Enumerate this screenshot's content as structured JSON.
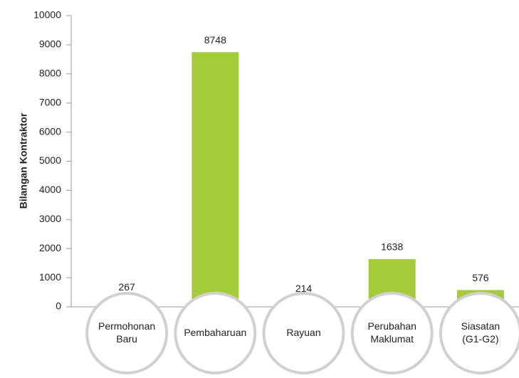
{
  "chart_data": {
    "type": "bar",
    "y_label": "Bilangan Kontraktor",
    "categories": [
      "Permohonan Baru",
      "Pembaharuan",
      "Rayuan",
      "Perubahan Maklumat",
      "Siasatan (G1-G2)"
    ],
    "values": [
      267,
      8748,
      214,
      1638,
      576
    ],
    "color": "#a4cc3a",
    "ylim": [
      0,
      10000
    ],
    "yticks": [
      0,
      1000,
      2000,
      3000,
      4000,
      5000,
      6000,
      7000,
      8000,
      9000,
      10000
    ],
    "grid": false
  }
}
